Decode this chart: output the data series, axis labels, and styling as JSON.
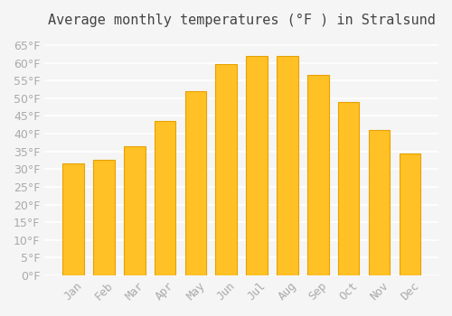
{
  "title": "Average monthly temperatures (°F ) in Stralsund",
  "months": [
    "Jan",
    "Feb",
    "Mar",
    "Apr",
    "May",
    "Jun",
    "Jul",
    "Aug",
    "Sep",
    "Oct",
    "Nov",
    "Dec"
  ],
  "values": [
    31.5,
    32.5,
    36.5,
    43.5,
    52.0,
    59.5,
    62.0,
    62.0,
    56.5,
    49.0,
    41.0,
    34.5
  ],
  "bar_color": "#FFC125",
  "bar_edge_color": "#E8A000",
  "background_color": "#f5f5f5",
  "grid_color": "#ffffff",
  "ylim": [
    0,
    68
  ],
  "yticks": [
    0,
    5,
    10,
    15,
    20,
    25,
    30,
    35,
    40,
    45,
    50,
    55,
    60,
    65
  ],
  "title_fontsize": 11,
  "tick_fontsize": 9,
  "tick_color": "#aaaaaa",
  "title_color": "#444444"
}
